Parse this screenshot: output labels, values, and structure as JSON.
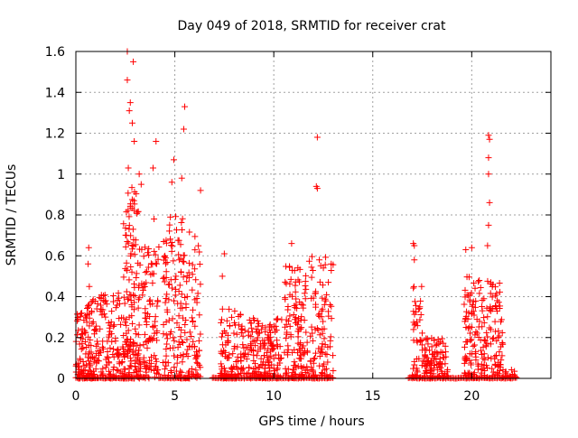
{
  "chart_data": {
    "type": "scatter",
    "title": "Day 049 of 2018, SRMTID for receiver crat",
    "xlabel": "GPS time / hours",
    "ylabel": "SRMTID / TECUs",
    "xlim": [
      0,
      24
    ],
    "ylim": [
      0,
      1.6
    ],
    "xticks": [
      0,
      5,
      10,
      15,
      20
    ],
    "xtick_labels": [
      "0",
      "5",
      "10",
      "15",
      "20"
    ],
    "yticks": [
      0,
      0.2,
      0.4,
      0.6,
      0.8,
      1,
      1.2,
      1.4,
      1.6
    ],
    "ytick_labels": [
      "0",
      "0.2",
      "0.4",
      "0.6",
      "0.8",
      "1",
      "1.2",
      "1.4",
      "1.6"
    ],
    "grid": true,
    "marker": "+",
    "colors": {
      "points": "#ff0000",
      "grid": "#a0a0a0",
      "axes": "#000000"
    },
    "clusters": [
      {
        "x_start": 0.0,
        "x_end": 0.55,
        "n": 60,
        "max": 0.33,
        "peaks": []
      },
      {
        "x_start": 0.55,
        "x_end": 1.0,
        "n": 55,
        "max": 0.4,
        "peaks": [
          [
            0.65,
            0.64
          ],
          [
            0.62,
            0.56
          ],
          [
            0.68,
            0.45
          ]
        ]
      },
      {
        "x_start": 1.0,
        "x_end": 2.4,
        "n": 120,
        "max": 0.42,
        "peaks": []
      },
      {
        "x_start": 2.4,
        "x_end": 3.2,
        "n": 150,
        "max": 0.95,
        "peaks": [
          [
            2.6,
            1.6
          ],
          [
            2.9,
            1.55
          ],
          [
            2.6,
            1.46
          ],
          [
            2.75,
            1.35
          ],
          [
            2.7,
            1.31
          ],
          [
            2.85,
            1.25
          ],
          [
            2.95,
            1.16
          ],
          [
            2.65,
            1.03
          ]
        ]
      },
      {
        "x_start": 3.2,
        "x_end": 4.2,
        "n": 110,
        "max": 0.65,
        "peaks": [
          [
            3.3,
            0.95
          ],
          [
            3.2,
            1.0
          ],
          [
            4.05,
            1.16
          ],
          [
            3.9,
            1.03
          ],
          [
            3.95,
            0.78
          ]
        ]
      },
      {
        "x_start": 4.4,
        "x_end": 5.4,
        "n": 110,
        "max": 0.8,
        "peaks": [
          [
            4.95,
            1.07
          ],
          [
            4.85,
            0.96
          ],
          [
            5.35,
            0.98
          ]
        ]
      },
      {
        "x_start": 5.4,
        "x_end": 6.3,
        "n": 90,
        "max": 0.72,
        "peaks": [
          [
            5.5,
            1.33
          ],
          [
            5.45,
            1.22
          ],
          [
            6.3,
            0.92
          ]
        ]
      },
      {
        "x_start": 7.3,
        "x_end": 8.6,
        "n": 110,
        "max": 0.34,
        "peaks": [
          [
            7.5,
            0.61
          ],
          [
            7.4,
            0.5
          ]
        ]
      },
      {
        "x_start": 8.6,
        "x_end": 10.4,
        "n": 160,
        "max": 0.3,
        "peaks": []
      },
      {
        "x_start": 10.5,
        "x_end": 11.5,
        "n": 110,
        "max": 0.55,
        "peaks": [
          [
            10.9,
            0.66
          ]
        ]
      },
      {
        "x_start": 11.5,
        "x_end": 13.0,
        "n": 120,
        "max": 0.6,
        "peaks": [
          [
            12.2,
            1.18
          ],
          [
            12.15,
            0.94
          ],
          [
            12.2,
            0.93
          ],
          [
            12.9,
            0.56
          ]
        ]
      },
      {
        "x_start": 17.0,
        "x_end": 17.5,
        "n": 45,
        "max": 0.45,
        "peaks": [
          [
            17.05,
            0.66
          ],
          [
            17.1,
            0.65
          ],
          [
            17.1,
            0.58
          ]
        ]
      },
      {
        "x_start": 17.5,
        "x_end": 18.8,
        "n": 100,
        "max": 0.2,
        "peaks": []
      },
      {
        "x_start": 19.6,
        "x_end": 20.3,
        "n": 80,
        "max": 0.5,
        "peaks": [
          [
            19.7,
            0.63
          ],
          [
            20.0,
            0.64
          ]
        ]
      },
      {
        "x_start": 20.3,
        "x_end": 21.6,
        "n": 120,
        "max": 0.5,
        "peaks": [
          [
            20.85,
            1.19
          ],
          [
            20.9,
            1.17
          ],
          [
            20.85,
            1.08
          ],
          [
            20.85,
            1.0
          ],
          [
            20.9,
            0.86
          ],
          [
            20.85,
            0.75
          ],
          [
            20.8,
            0.65
          ]
        ]
      },
      {
        "x_start": 21.6,
        "x_end": 22.2,
        "n": 15,
        "max": 0.05,
        "peaks": []
      }
    ],
    "zero_runs": [
      [
        0,
        3
      ],
      [
        4.2,
        5.8
      ],
      [
        6.9,
        13
      ],
      [
        16.8,
        22.3
      ]
    ]
  }
}
